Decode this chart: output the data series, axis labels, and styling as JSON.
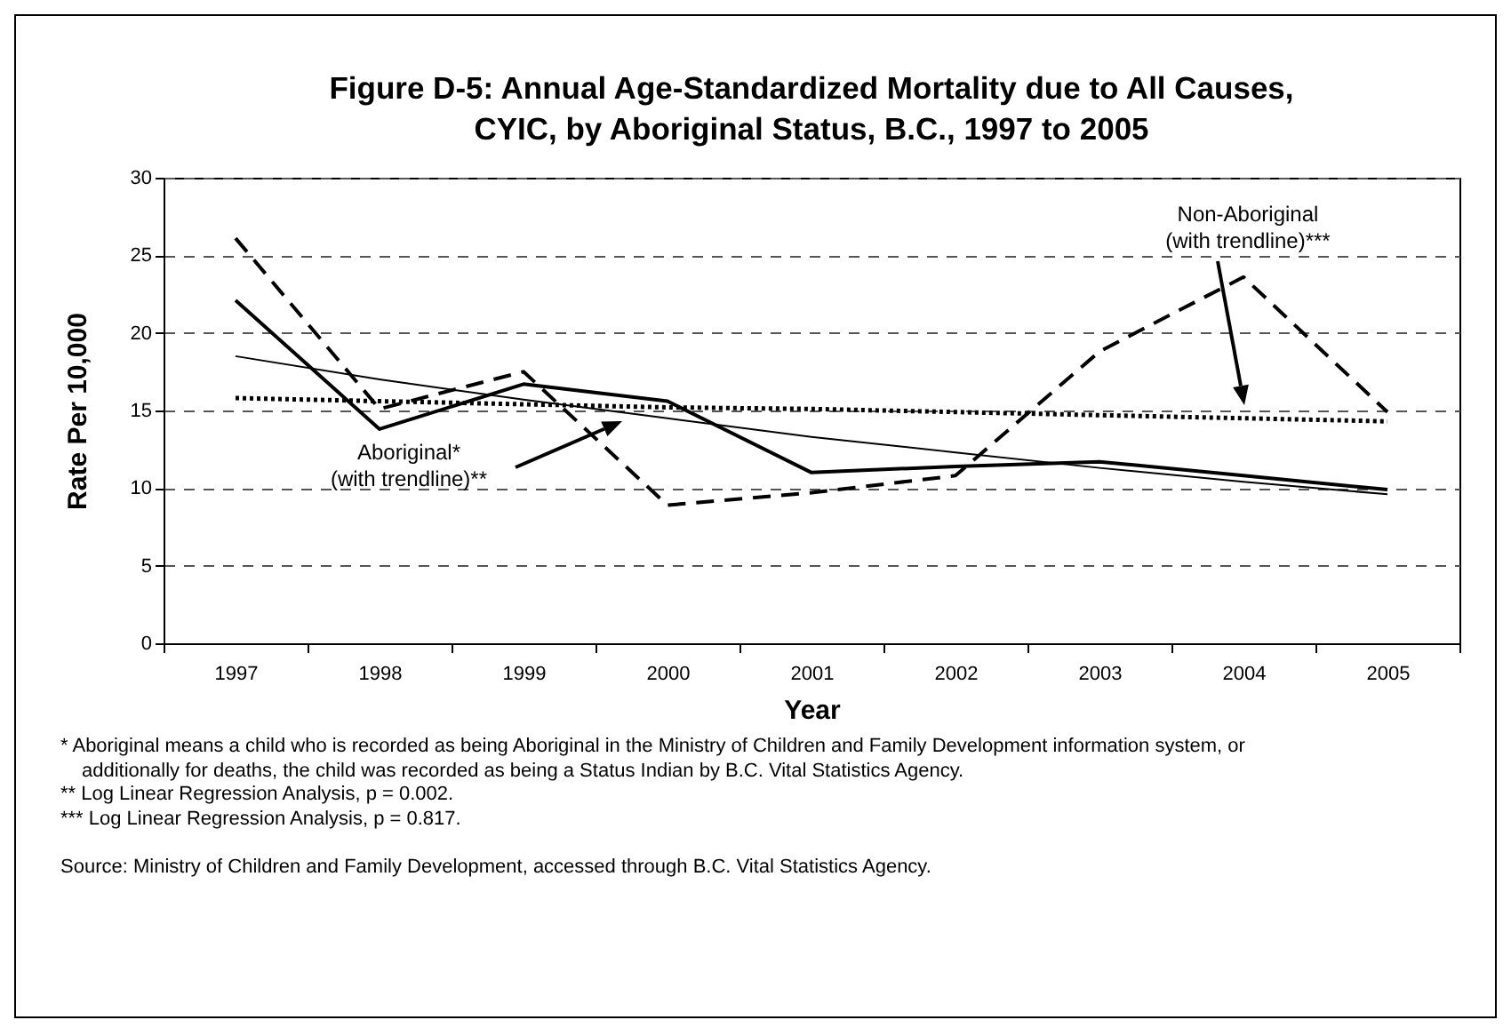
{
  "chart_data": {
    "type": "line",
    "title": "Figure D-5:  Annual Age-Standardized Mortality due to All Causes,\nCYIC, by Aboriginal Status, B.C., 1997 to 2005",
    "xlabel": "Year",
    "ylabel": "Rate Per 10,000",
    "categories": [
      "1997",
      "1998",
      "1999",
      "2000",
      "2001",
      "2002",
      "2003",
      "2004",
      "2005"
    ],
    "series": [
      {
        "color": "#000000",
        "line_style": "solid",
        "values": [
          22.1,
          13.8,
          16.7,
          15.6,
          11.0,
          11.4,
          11.7,
          10.8,
          9.9
        ]
      },
      {
        "color": "#000000",
        "line_style": "dashed",
        "values": [
          26.1,
          15.1,
          17.5,
          8.9,
          9.7,
          10.8,
          18.8,
          23.6,
          14.9
        ]
      },
      {
        "color": "#000000",
        "line_style": "solid",
        "values": [
          18.5,
          17.0,
          15.7,
          14.5,
          13.3,
          12.3,
          11.3,
          10.4,
          9.6
        ]
      },
      {
        "color": "#000000",
        "line_style": "dotted",
        "values": [
          15.8,
          15.6,
          15.4,
          15.2,
          15.1,
          14.9,
          14.7,
          14.5,
          14.3
        ]
      }
    ],
    "ylim": [
      0,
      30
    ],
    "yticks": [
      0,
      5,
      10,
      15,
      20,
      25,
      30
    ],
    "grid": "y",
    "marker": "none",
    "annotations": [
      "Aboriginal*\n(with trendline)**",
      "Non-Aboriginal\n(with trendline)***",
      "*    Aboriginal means a child who is recorded as being Aboriginal in the Ministry of Children and Family Development information system, or additionally for deaths, the child was recorded as being a Status Indian by B.C. Vital Statistics Agency.",
      "**  Log Linear Regression Analysis, p = 0.002.",
      "*** Log Linear Regression Analysis, p = 0.817.",
      "Source:  Ministry of Children and Family Development, accessed through B.C. Vital Statistics Agency."
    ]
  }
}
